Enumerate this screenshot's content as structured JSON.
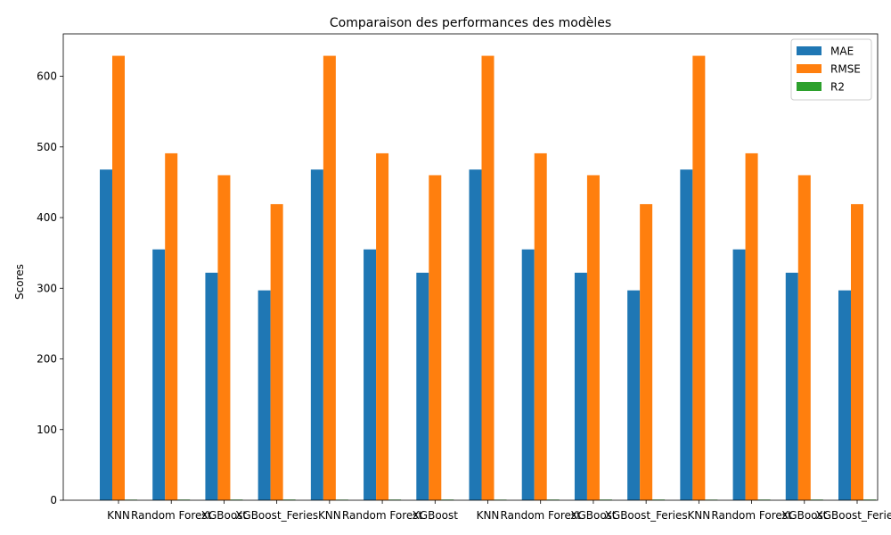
{
  "chart_data": {
    "type": "bar",
    "title": "Comparaison des performances des modèles",
    "xlabel": "",
    "ylabel": "Scores",
    "ylim": [
      0,
      660
    ],
    "yticks": [
      0,
      100,
      200,
      300,
      400,
      500,
      600
    ],
    "grid": false,
    "legend_position": "top-right",
    "categories": [
      "KNN",
      "Random Forest",
      "XGBoost",
      "XGBoost_Feries",
      "KNN",
      "Random Forest",
      "XGBoost",
      "KNN",
      "Random Forest",
      "XGBoost",
      "XGBoost_Feries",
      "KNN",
      "Random Forest",
      "XGBoost",
      "XGBoost_Feries"
    ],
    "series": [
      {
        "name": "MAE",
        "color": "#1f77b4",
        "values": [
          468,
          355,
          322,
          297,
          468,
          355,
          322,
          468,
          355,
          322,
          297,
          468,
          355,
          322,
          297
        ]
      },
      {
        "name": "RMSE",
        "color": "#ff7f0e",
        "values": [
          629,
          491,
          460,
          419,
          629,
          491,
          460,
          629,
          491,
          460,
          419,
          629,
          491,
          460,
          419
        ]
      },
      {
        "name": "R2",
        "color": "#2ca02c",
        "values": [
          0.8,
          0.88,
          0.9,
          0.92,
          0.8,
          0.88,
          0.9,
          0.8,
          0.88,
          0.9,
          0.92,
          0.8,
          0.88,
          0.9,
          0.92
        ]
      }
    ]
  }
}
